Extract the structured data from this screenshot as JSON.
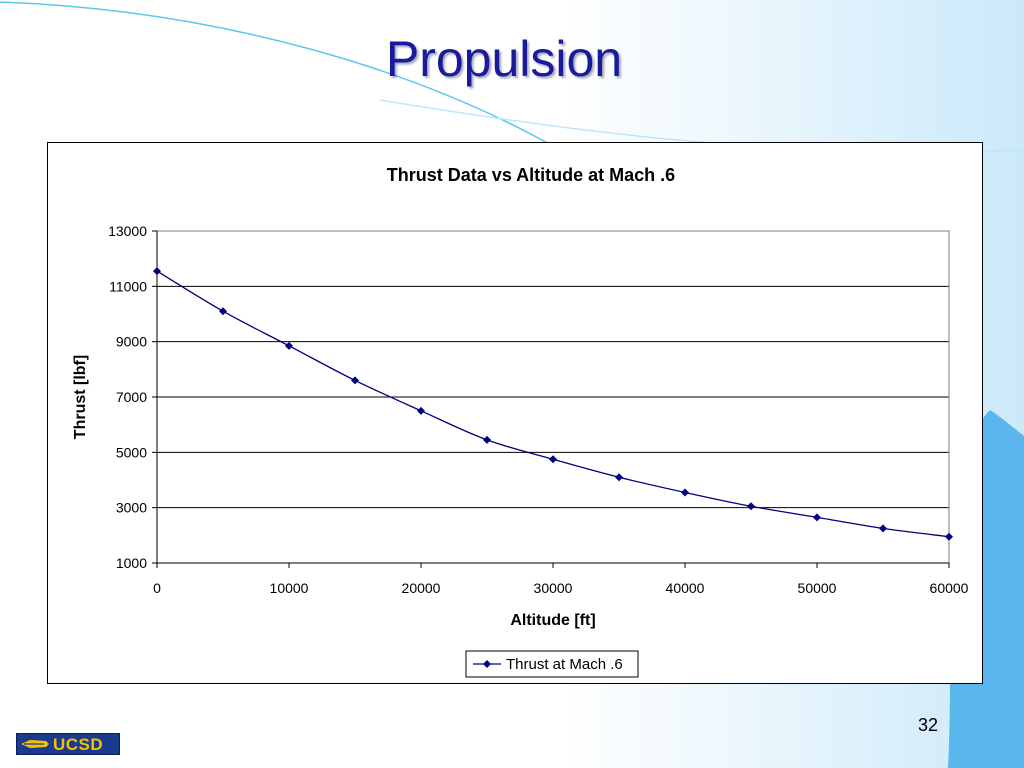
{
  "slide": {
    "title": "Propulsion",
    "page_number": "32",
    "logo_text": "UCSD",
    "colors": {
      "title": "#1a1a9c",
      "accent_blue": "#5bb6ee",
      "series": "#000080"
    }
  },
  "chart_data": {
    "type": "line",
    "title": "Thrust Data vs Altitude at Mach .6",
    "xlabel": "Altitude [ft]",
    "ylabel": "Thrust [lbf]",
    "xlim": [
      0,
      60000
    ],
    "ylim": [
      1000,
      13000
    ],
    "x_ticks": [
      "0",
      "10000",
      "20000",
      "30000",
      "40000",
      "50000",
      "60000"
    ],
    "y_ticks": [
      "13000",
      "11000",
      "9000",
      "7000",
      "5000",
      "3000",
      "1000"
    ],
    "grid": true,
    "legend": "bottom",
    "series": [
      {
        "name": "Thrust at Mach .6",
        "marker": "diamond",
        "x": [
          0,
          5000,
          10000,
          15000,
          20000,
          25000,
          30000,
          35000,
          40000,
          45000,
          50000,
          55000,
          60000
        ],
        "values": [
          11550,
          10100,
          8850,
          7600,
          6500,
          5450,
          4750,
          4100,
          3550,
          3050,
          2650,
          2250,
          1950
        ]
      }
    ]
  }
}
